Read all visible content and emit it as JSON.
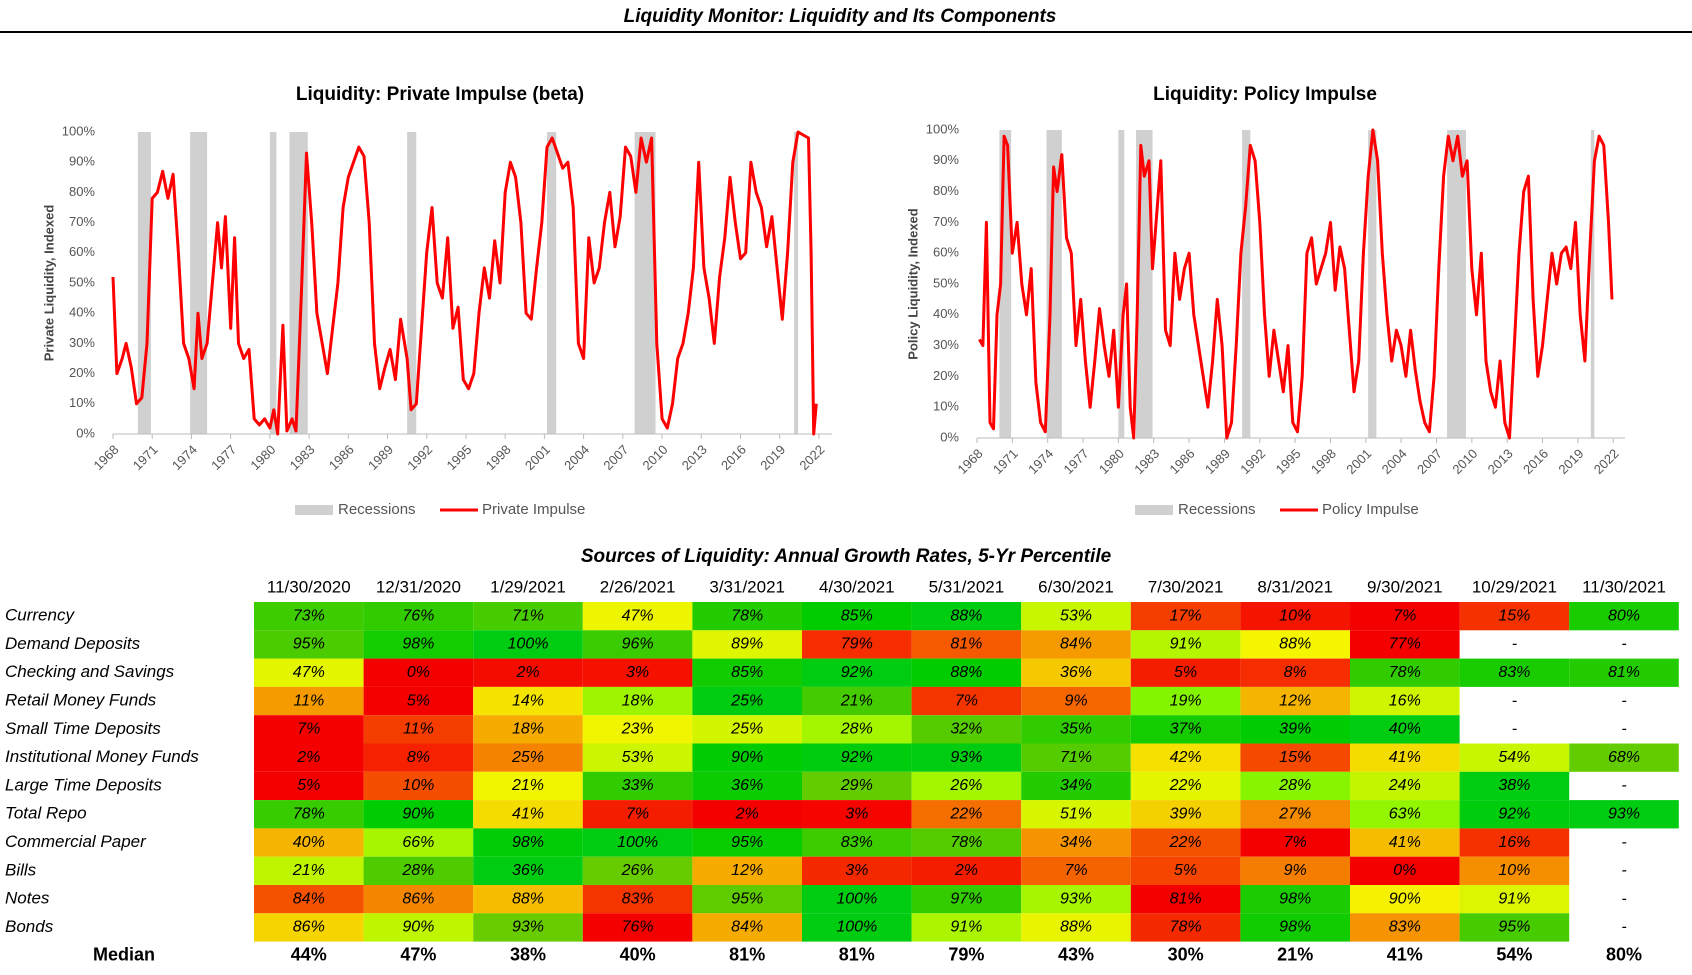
{
  "title": "Liquidity Monitor: Liquidity and Its Components",
  "chart_data": [
    {
      "type": "line",
      "title": "Liquidity: Private Impulse (beta)",
      "y_label": "Private Liquidity, Indexed",
      "xlim": [
        1968,
        2023
      ],
      "xticks": [
        1968,
        1971,
        1974,
        1977,
        1980,
        1983,
        1986,
        1989,
        1992,
        1995,
        1998,
        2001,
        2004,
        2007,
        2010,
        2013,
        2016,
        2019,
        2022
      ],
      "ylim": [
        0,
        100
      ],
      "yticks": [
        {
          "value": 0,
          "label": "0%"
        },
        {
          "value": 10,
          "label": "10%"
        },
        {
          "value": 20,
          "label": "20%"
        },
        {
          "value": 30,
          "label": "30%"
        },
        {
          "value": 40,
          "label": "40%"
        },
        {
          "value": 50,
          "label": "50%"
        },
        {
          "value": 60,
          "label": "60%"
        },
        {
          "value": 70,
          "label": "70%"
        },
        {
          "value": 80,
          "label": "80%"
        },
        {
          "value": 90,
          "label": "90%"
        },
        {
          "value": 100,
          "label": "100%"
        }
      ],
      "recessions": {
        "name": "Recessions",
        "color": "#d0d0d0",
        "ranges": [
          [
            1969.9,
            1970.9
          ],
          [
            1973.9,
            1975.2
          ],
          [
            1980.0,
            1980.5
          ],
          [
            1981.5,
            1982.9
          ],
          [
            1990.5,
            1991.2
          ],
          [
            2001.2,
            2001.9
          ],
          [
            2007.9,
            2009.5
          ],
          [
            2020.1,
            2020.4
          ]
        ]
      },
      "x": [
        1968.0,
        1968.3,
        1968.7,
        1969.0,
        1969.4,
        1969.8,
        1970.2,
        1970.6,
        1971.0,
        1971.4,
        1971.8,
        1972.2,
        1972.6,
        1973.0,
        1973.4,
        1973.8,
        1974.2,
        1974.5,
        1974.8,
        1975.2,
        1975.6,
        1976.0,
        1976.3,
        1976.6,
        1977.0,
        1977.3,
        1977.6,
        1978.0,
        1978.4,
        1978.8,
        1979.2,
        1979.6,
        1980.0,
        1980.3,
        1980.6,
        1981.0,
        1981.3,
        1981.7,
        1982.0,
        1982.4,
        1982.8,
        1983.2,
        1983.6,
        1984.0,
        1984.4,
        1984.8,
        1985.2,
        1985.6,
        1986.0,
        1986.4,
        1986.8,
        1987.2,
        1987.6,
        1988.0,
        1988.4,
        1988.8,
        1989.2,
        1989.6,
        1990.0,
        1990.5,
        1990.8,
        1991.2,
        1991.6,
        1992.0,
        1992.4,
        1992.8,
        1993.2,
        1993.6,
        1994.0,
        1994.4,
        1994.8,
        1995.2,
        1995.6,
        1996.0,
        1996.4,
        1996.8,
        1997.2,
        1997.6,
        1998.0,
        1998.4,
        1998.8,
        1999.2,
        1999.6,
        2000.0,
        2000.4,
        2000.8,
        2001.2,
        2001.6,
        2002.0,
        2002.4,
        2002.8,
        2003.2,
        2003.6,
        2004.0,
        2004.4,
        2004.8,
        2005.2,
        2005.6,
        2006.0,
        2006.4,
        2006.8,
        2007.2,
        2007.6,
        2008.0,
        2008.4,
        2008.8,
        2009.2,
        2009.6,
        2010.0,
        2010.4,
        2010.8,
        2011.2,
        2011.6,
        2012.0,
        2012.4,
        2012.8,
        2013.2,
        2013.6,
        2014.0,
        2014.4,
        2014.8,
        2015.2,
        2015.6,
        2016.0,
        2016.4,
        2016.8,
        2017.2,
        2017.6,
        2018.0,
        2018.4,
        2018.8,
        2019.2,
        2019.6,
        2020.0,
        2020.4,
        2020.8,
        2021.2,
        2021.4,
        2021.6,
        2021.8
      ],
      "series": [
        {
          "name": "Private Impulse",
          "color": "#ff0000",
          "values": [
            52,
            20,
            25,
            30,
            22,
            10,
            12,
            30,
            78,
            80,
            87,
            78,
            86,
            60,
            30,
            25,
            15,
            40,
            25,
            30,
            50,
            70,
            55,
            72,
            35,
            65,
            30,
            25,
            28,
            5,
            3,
            5,
            2,
            8,
            0,
            36,
            1,
            5,
            1,
            45,
            93,
            70,
            40,
            30,
            20,
            35,
            50,
            75,
            85,
            90,
            95,
            92,
            70,
            30,
            15,
            22,
            28,
            18,
            38,
            25,
            8,
            10,
            35,
            60,
            75,
            50,
            45,
            65,
            35,
            42,
            18,
            15,
            20,
            40,
            55,
            45,
            64,
            50,
            80,
            90,
            85,
            70,
            40,
            38,
            55,
            70,
            95,
            98,
            93,
            88,
            90,
            75,
            30,
            25,
            65,
            50,
            55,
            70,
            80,
            62,
            72,
            95,
            92,
            80,
            98,
            90,
            98,
            30,
            5,
            2,
            10,
            25,
            30,
            40,
            55,
            90,
            55,
            45,
            30,
            52,
            65,
            85,
            70,
            58,
            60,
            90,
            80,
            75,
            62,
            72,
            55,
            38,
            60,
            90,
            100,
            99,
            98,
            60,
            0,
            10
          ]
        }
      ]
    },
    {
      "type": "line",
      "title": "Liquidity: Policy Impulse",
      "y_label": "Policy Liquidity, Indexed",
      "xlim": [
        1968,
        2023
      ],
      "xticks": [
        1968,
        1971,
        1974,
        1977,
        1980,
        1983,
        1986,
        1989,
        1992,
        1995,
        1998,
        2001,
        2004,
        2007,
        2010,
        2013,
        2016,
        2019,
        2022
      ],
      "ylim": [
        0,
        100
      ],
      "yticks": [
        {
          "value": 0,
          "label": "0%"
        },
        {
          "value": 10,
          "label": "10%"
        },
        {
          "value": 20,
          "label": "20%"
        },
        {
          "value": 30,
          "label": "30%"
        },
        {
          "value": 40,
          "label": "40%"
        },
        {
          "value": 50,
          "label": "50%"
        },
        {
          "value": 60,
          "label": "60%"
        },
        {
          "value": 70,
          "label": "70%"
        },
        {
          "value": 80,
          "label": "80%"
        },
        {
          "value": 90,
          "label": "90%"
        },
        {
          "value": 100,
          "label": "100%"
        }
      ],
      "recessions": {
        "name": "Recessions",
        "color": "#d0d0d0",
        "ranges": [
          [
            1969.9,
            1970.9
          ],
          [
            1973.9,
            1975.2
          ],
          [
            1980.0,
            1980.5
          ],
          [
            1981.5,
            1982.9
          ],
          [
            1990.5,
            1991.2
          ],
          [
            2001.2,
            2001.9
          ],
          [
            2007.9,
            2009.5
          ],
          [
            2020.1,
            2020.4
          ]
        ]
      },
      "x": [
        1968.2,
        1968.5,
        1968.8,
        1969.1,
        1969.4,
        1969.7,
        1970.0,
        1970.3,
        1970.6,
        1971.0,
        1971.4,
        1971.8,
        1972.2,
        1972.6,
        1973.0,
        1973.4,
        1973.8,
        1974.2,
        1974.5,
        1974.8,
        1975.2,
        1975.6,
        1976.0,
        1976.4,
        1976.8,
        1977.2,
        1977.6,
        1978.0,
        1978.4,
        1978.8,
        1979.2,
        1979.6,
        1980.0,
        1980.4,
        1980.7,
        1981.0,
        1981.3,
        1981.6,
        1981.9,
        1982.2,
        1982.6,
        1982.9,
        1983.2,
        1983.6,
        1984.0,
        1984.4,
        1984.8,
        1985.2,
        1985.6,
        1986.0,
        1986.4,
        1986.8,
        1987.2,
        1987.6,
        1988.0,
        1988.4,
        1988.8,
        1989.2,
        1989.6,
        1990.0,
        1990.4,
        1990.8,
        1991.2,
        1991.6,
        1992.0,
        1992.4,
        1992.8,
        1993.2,
        1993.6,
        1994.0,
        1994.4,
        1994.8,
        1995.2,
        1995.6,
        1996.0,
        1996.4,
        1996.8,
        1997.2,
        1997.6,
        1998.0,
        1998.4,
        1998.8,
        1999.2,
        1999.6,
        2000.0,
        2000.4,
        2000.8,
        2001.2,
        2001.6,
        2002.0,
        2002.4,
        2002.8,
        2003.2,
        2003.6,
        2004.0,
        2004.4,
        2004.8,
        2005.2,
        2005.6,
        2006.0,
        2006.4,
        2006.8,
        2007.2,
        2007.6,
        2008.0,
        2008.4,
        2008.8,
        2009.2,
        2009.6,
        2010.0,
        2010.4,
        2010.8,
        2011.2,
        2011.6,
        2012.0,
        2012.4,
        2012.8,
        2013.2,
        2013.6,
        2014.0,
        2014.4,
        2014.8,
        2015.2,
        2015.6,
        2016.0,
        2016.4,
        2016.8,
        2017.2,
        2017.6,
        2018.0,
        2018.4,
        2018.8,
        2019.2,
        2019.6,
        2020.0,
        2020.4,
        2020.8,
        2021.2,
        2021.6,
        2021.9
      ],
      "series": [
        {
          "name": "Policy Impulse",
          "color": "#ff0000",
          "values": [
            32,
            30,
            70,
            5,
            3,
            40,
            50,
            98,
            95,
            60,
            70,
            50,
            40,
            55,
            18,
            5,
            2,
            40,
            88,
            80,
            92,
            65,
            60,
            30,
            45,
            25,
            10,
            25,
            42,
            30,
            20,
            35,
            10,
            40,
            50,
            10,
            0,
            40,
            95,
            85,
            90,
            55,
            70,
            90,
            35,
            30,
            60,
            45,
            55,
            60,
            40,
            30,
            20,
            10,
            25,
            45,
            30,
            0,
            5,
            30,
            60,
            75,
            95,
            90,
            70,
            40,
            20,
            35,
            25,
            15,
            30,
            5,
            2,
            20,
            60,
            65,
            50,
            55,
            60,
            70,
            48,
            62,
            55,
            35,
            15,
            25,
            60,
            85,
            100,
            90,
            60,
            40,
            25,
            35,
            30,
            20,
            35,
            22,
            12,
            5,
            2,
            20,
            55,
            85,
            98,
            90,
            98,
            85,
            90,
            55,
            40,
            60,
            25,
            15,
            10,
            25,
            5,
            0,
            30,
            60,
            80,
            85,
            45,
            20,
            30,
            45,
            60,
            50,
            60,
            62,
            55,
            70,
            40,
            25,
            60,
            90,
            98,
            95,
            70,
            45
          ]
        }
      ]
    }
  ],
  "table": {
    "title": "Sources of Liquidity: Annual Growth Rates, 5-Yr Percentile",
    "columns": [
      "11/30/2020",
      "12/31/2020",
      "1/29/2021",
      "2/26/2021",
      "3/31/2021",
      "4/30/2021",
      "5/31/2021",
      "6/30/2021",
      "7/30/2021",
      "8/31/2021",
      "9/30/2021",
      "10/29/2021",
      "11/30/2021"
    ],
    "rows": [
      {
        "label": "Currency",
        "cells": [
          "73%",
          "76%",
          "71%",
          "47%",
          "78%",
          "85%",
          "88%",
          "53%",
          "17%",
          "10%",
          "7%",
          "15%",
          "80%"
        ]
      },
      {
        "label": "Demand Deposits",
        "cells": [
          "95%",
          "98%",
          "100%",
          "96%",
          "89%",
          "79%",
          "81%",
          "84%",
          "91%",
          "88%",
          "77%",
          "-",
          "-"
        ]
      },
      {
        "label": "Checking and Savings",
        "cells": [
          "47%",
          "0%",
          "2%",
          "3%",
          "85%",
          "92%",
          "88%",
          "36%",
          "5%",
          "8%",
          "78%",
          "83%",
          "81%"
        ]
      },
      {
        "label": "Retail Money Funds",
        "cells": [
          "11%",
          "5%",
          "14%",
          "18%",
          "25%",
          "21%",
          "7%",
          "9%",
          "19%",
          "12%",
          "16%",
          "-",
          "-"
        ]
      },
      {
        "label": "Small Time Deposits",
        "cells": [
          "7%",
          "11%",
          "18%",
          "23%",
          "25%",
          "28%",
          "32%",
          "35%",
          "37%",
          "39%",
          "40%",
          "-",
          "-"
        ]
      },
      {
        "label": "Institutional Money Funds",
        "cells": [
          "2%",
          "8%",
          "25%",
          "53%",
          "90%",
          "92%",
          "93%",
          "71%",
          "42%",
          "15%",
          "41%",
          "54%",
          "68%"
        ]
      },
      {
        "label": "Large Time Deposits",
        "cells": [
          "5%",
          "10%",
          "21%",
          "33%",
          "36%",
          "29%",
          "26%",
          "34%",
          "22%",
          "28%",
          "24%",
          "38%",
          "-"
        ]
      },
      {
        "label": "Total Repo",
        "cells": [
          "78%",
          "90%",
          "41%",
          "7%",
          "2%",
          "3%",
          "22%",
          "51%",
          "39%",
          "27%",
          "63%",
          "92%",
          "93%"
        ]
      },
      {
        "label": "Commercial Paper",
        "cells": [
          "40%",
          "66%",
          "98%",
          "100%",
          "95%",
          "83%",
          "78%",
          "34%",
          "22%",
          "7%",
          "41%",
          "16%",
          "-"
        ]
      },
      {
        "label": "Bills",
        "cells": [
          "21%",
          "28%",
          "36%",
          "26%",
          "12%",
          "3%",
          "2%",
          "7%",
          "5%",
          "9%",
          "0%",
          "10%",
          "-"
        ]
      },
      {
        "label": "Notes",
        "cells": [
          "84%",
          "86%",
          "88%",
          "83%",
          "95%",
          "100%",
          "97%",
          "93%",
          "81%",
          "98%",
          "90%",
          "91%",
          "-"
        ]
      },
      {
        "label": "Bonds",
        "cells": [
          "86%",
          "90%",
          "93%",
          "76%",
          "84%",
          "100%",
          "91%",
          "88%",
          "78%",
          "98%",
          "83%",
          "95%",
          "-"
        ]
      }
    ],
    "median": {
      "label": "Median",
      "cells": [
        "44%",
        "47%",
        "38%",
        "40%",
        "81%",
        "81%",
        "79%",
        "43%",
        "30%",
        "21%",
        "41%",
        "54%",
        "80%"
      ]
    }
  }
}
